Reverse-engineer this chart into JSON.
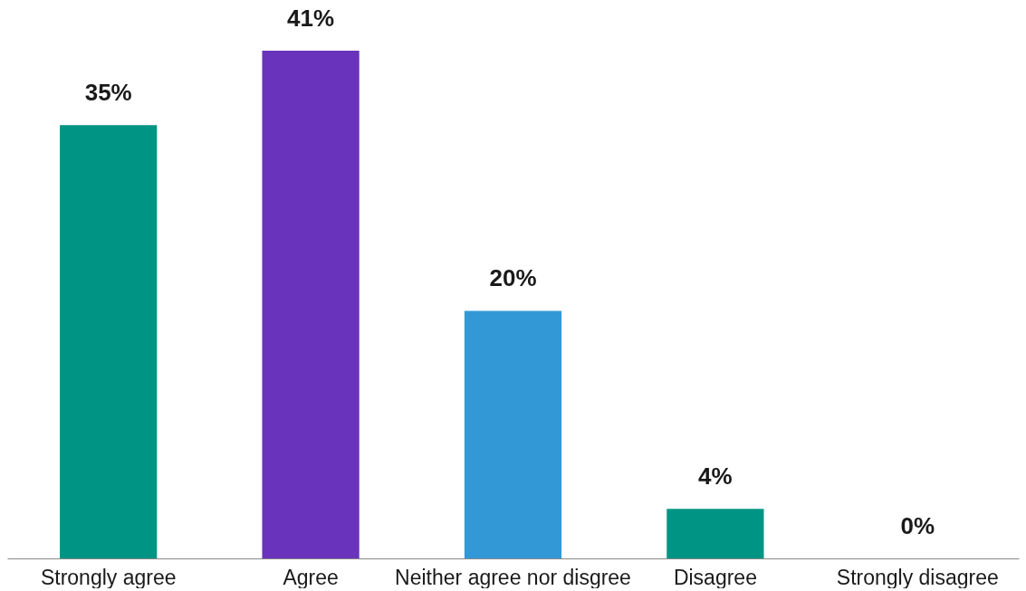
{
  "chart_data": {
    "type": "bar",
    "categories": [
      "Strongly agree",
      "Agree",
      "Neither agree nor disgree",
      "Disagree",
      "Strongly disagree"
    ],
    "values": [
      35,
      41,
      20,
      4,
      0
    ],
    "colors": [
      "#009485",
      "#6933bb",
      "#3399d6",
      "#009485",
      "#009485"
    ],
    "value_labels": [
      "35%",
      "41%",
      "20%",
      "4%",
      "0%"
    ],
    "grid": false
  }
}
